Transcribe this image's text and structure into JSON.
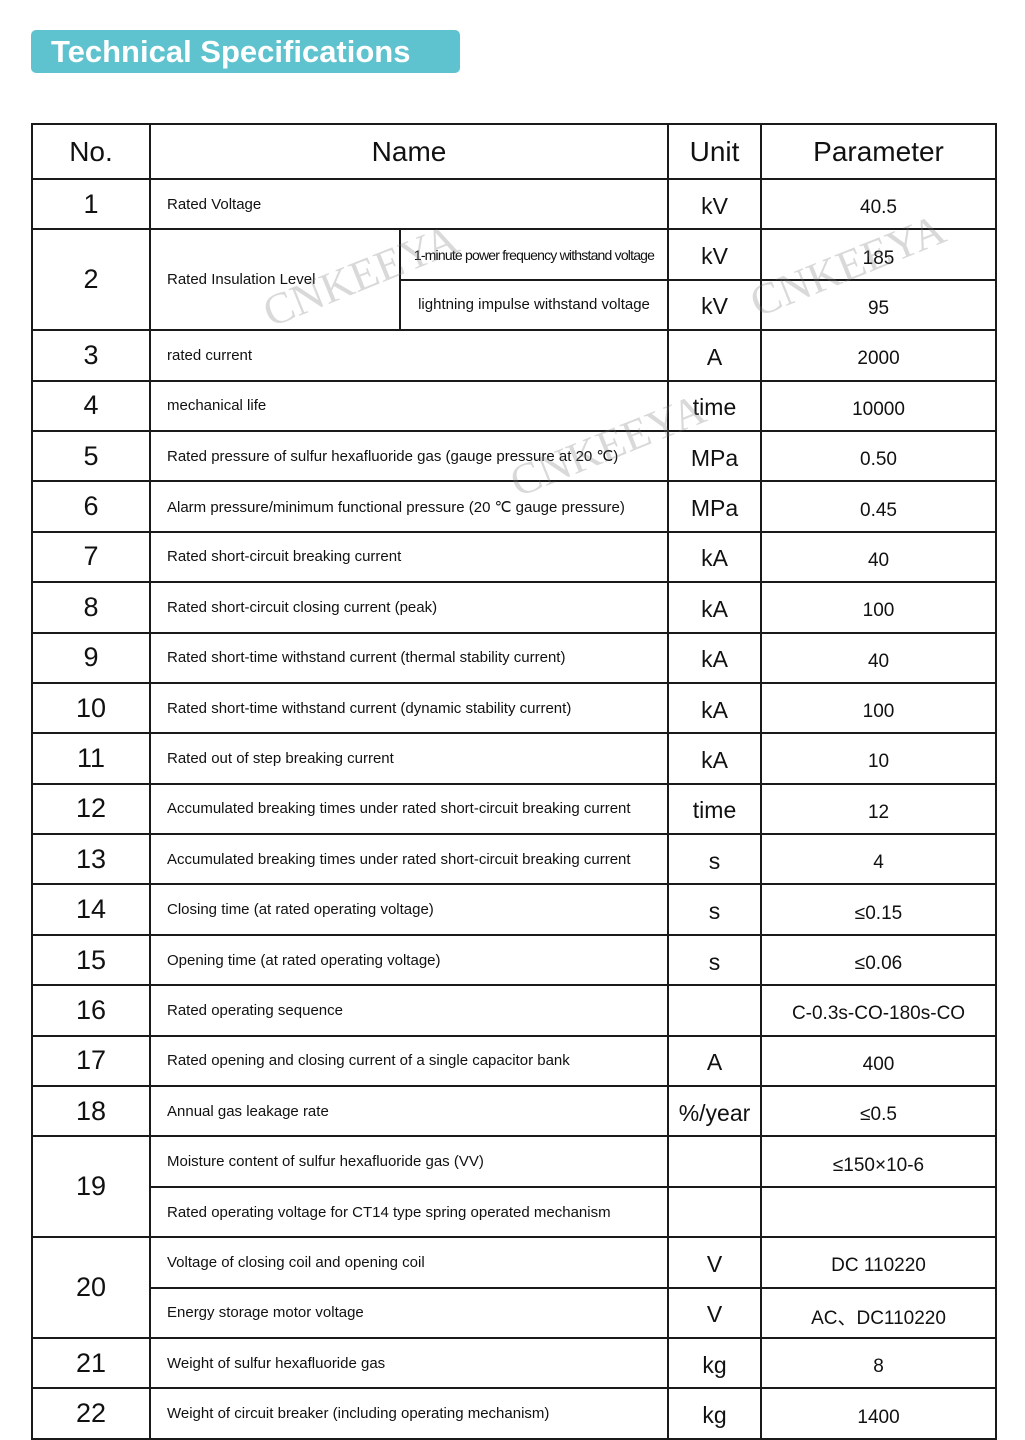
{
  "title": "Technical Specifications",
  "headers": {
    "no": "No.",
    "name": "Name",
    "unit": "Unit",
    "parameter": "Parameter"
  },
  "watermark": "CNKEEYA",
  "rows": [
    {
      "no": "1",
      "items": [
        {
          "name": "Rated Voltage",
          "unit": "kV",
          "value": "40.5"
        }
      ]
    },
    {
      "no": "2",
      "group_name": "Rated Insulation Level",
      "items": [
        {
          "sub": "1-minute power frequency withstand voltage",
          "unit": "kV",
          "value": "185"
        },
        {
          "sub": "lightning impulse withstand voltage",
          "unit": "kV",
          "value": "95"
        }
      ]
    },
    {
      "no": "3",
      "items": [
        {
          "name": "rated current",
          "unit": "A",
          "value": "2000"
        }
      ]
    },
    {
      "no": "4",
      "items": [
        {
          "name": "mechanical life",
          "unit": "time",
          "value": "10000"
        }
      ]
    },
    {
      "no": "5",
      "items": [
        {
          "name": "Rated pressure of sulfur hexafluoride gas (gauge pressure at 20 ℃)",
          "unit": "MPa",
          "value": "0.50"
        }
      ]
    },
    {
      "no": "6",
      "items": [
        {
          "name": "Alarm pressure/minimum functional pressure (20 ℃ gauge pressure)",
          "unit": "MPa",
          "value": "0.45"
        }
      ]
    },
    {
      "no": "7",
      "items": [
        {
          "name": "Rated short-circuit breaking current",
          "unit": "kA",
          "value": "40"
        }
      ]
    },
    {
      "no": "8",
      "items": [
        {
          "name": "Rated short-circuit closing current (peak)",
          "unit": "kA",
          "value": "100"
        }
      ]
    },
    {
      "no": "9",
      "items": [
        {
          "name": "Rated short-time withstand current (thermal stability current)",
          "unit": "kA",
          "value": "40"
        }
      ]
    },
    {
      "no": "10",
      "items": [
        {
          "name": "Rated short-time withstand current (dynamic stability current)",
          "unit": "kA",
          "value": "100"
        }
      ]
    },
    {
      "no": "11",
      "items": [
        {
          "name": "Rated out of step breaking current",
          "unit": "kA",
          "value": "10"
        }
      ]
    },
    {
      "no": "12",
      "items": [
        {
          "name": "Accumulated breaking times under rated short-circuit breaking current",
          "unit": "time",
          "value": "12"
        }
      ]
    },
    {
      "no": "13",
      "items": [
        {
          "name": "Accumulated breaking times under rated short-circuit breaking current",
          "unit": "s",
          "value": "4"
        }
      ]
    },
    {
      "no": "14",
      "items": [
        {
          "name": "Closing time (at rated operating voltage)",
          "unit": "s",
          "value": "≤0.15"
        }
      ]
    },
    {
      "no": "15",
      "items": [
        {
          "name": "Opening time (at rated operating voltage)",
          "unit": "s",
          "value": "≤0.06"
        }
      ]
    },
    {
      "no": "16",
      "items": [
        {
          "name": "Rated operating sequence",
          "unit": "",
          "value": "C-0.3s-CO-180s-CO"
        }
      ]
    },
    {
      "no": "17",
      "items": [
        {
          "name": "Rated opening and closing current of a single capacitor bank",
          "unit": "A",
          "value": "400"
        }
      ]
    },
    {
      "no": "18",
      "items": [
        {
          "name": "Annual gas leakage rate",
          "unit": "%/year",
          "value": "≤0.5"
        }
      ]
    },
    {
      "no": "19",
      "items": [
        {
          "name": "Moisture content of sulfur hexafluoride gas (VV)",
          "unit": "",
          "value": "≤150×10-6"
        },
        {
          "name": "Rated operating voltage for CT14 type spring operated mechanism",
          "unit": "",
          "value": ""
        }
      ]
    },
    {
      "no": "20",
      "items": [
        {
          "name": "Voltage of closing coil and opening coil",
          "unit": "V",
          "value": "DC 110220"
        },
        {
          "name": "Energy storage motor voltage",
          "unit": "V",
          "value": "AC、DC110220"
        }
      ]
    },
    {
      "no": "21",
      "items": [
        {
          "name": "Weight of sulfur hexafluoride gas",
          "unit": "kg",
          "value": "8"
        }
      ]
    },
    {
      "no": "22",
      "items": [
        {
          "name": "Weight of circuit breaker (including operating mechanism)",
          "unit": "kg",
          "value": "1400"
        }
      ]
    }
  ]
}
